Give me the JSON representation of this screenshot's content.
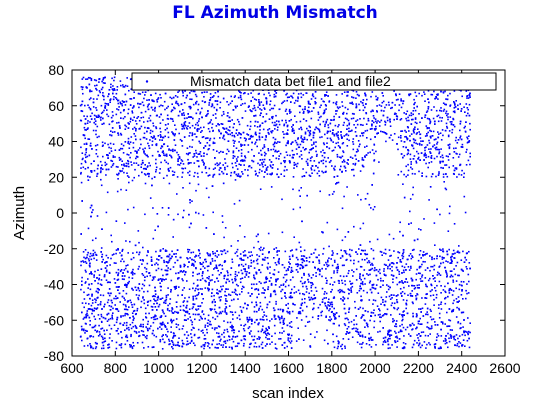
{
  "chart_data": {
    "type": "scatter",
    "title": "FL Azimuth Mismatch",
    "xlabel": "scan index",
    "ylabel": "Azimuth",
    "xlim": [
      600,
      2600
    ],
    "ylim": [
      -80,
      80
    ],
    "xticks": [
      600,
      800,
      1000,
      1200,
      1400,
      1600,
      1800,
      2000,
      2200,
      2400,
      2600
    ],
    "yticks": [
      -80,
      -60,
      -40,
      -20,
      0,
      20,
      40,
      60,
      80
    ],
    "grid": false,
    "legend_position": "top",
    "series": [
      {
        "name": "Mismatch data bet file1 and file2",
        "color": "#0000ff",
        "marker": "dot",
        "x_range": [
          640,
          2440
        ],
        "y_range": [
          -76,
          76
        ],
        "dense_bands": [
          {
            "y": [
              20,
              76
            ]
          },
          {
            "y": [
              -76,
              -20
            ]
          }
        ],
        "sparse_regions": [
          {
            "x": [
              1380,
              1620
            ],
            "y": [
              -10,
              20
            ]
          },
          {
            "x": [
              2000,
              2120
            ],
            "y": [
              -10,
              40
            ]
          },
          {
            "x": [
              1620,
              1800
            ],
            "y": [
              -76,
              -60
            ]
          }
        ]
      }
    ]
  }
}
